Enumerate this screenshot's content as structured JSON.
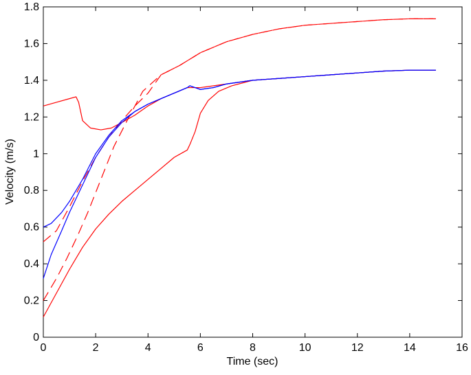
{
  "chart_data": {
    "type": "line",
    "title": "",
    "xlabel": "Time (sec)",
    "ylabel": "Velocity (m/s)",
    "xlim": [
      0,
      16
    ],
    "ylim": [
      0,
      1.8
    ],
    "xticks": [
      0,
      2,
      4,
      6,
      8,
      10,
      12,
      14,
      16
    ],
    "yticks": [
      0,
      0.2,
      0.4,
      0.6,
      0.8,
      1,
      1.2,
      1.4,
      1.6,
      1.8
    ],
    "grid": false,
    "legend": "none",
    "colors": {
      "red": "#ff0000",
      "blue": "#0000ff"
    },
    "series": [
      {
        "color": "red",
        "dashed": true,
        "points": [
          [
            0,
            0.2
          ],
          [
            0.5,
            0.32
          ],
          [
            0.9,
            0.43
          ],
          [
            1.3,
            0.55
          ],
          [
            1.7,
            0.68
          ],
          [
            2.2,
            0.86
          ],
          [
            2.7,
            1.04
          ],
          [
            3.2,
            1.18
          ],
          [
            3.8,
            1.34
          ],
          [
            4.5,
            1.43
          ],
          [
            5.2,
            1.48
          ],
          [
            6.0,
            1.55
          ],
          [
            7.0,
            1.61
          ],
          [
            8.0,
            1.65
          ],
          [
            9.0,
            1.68
          ],
          [
            10.0,
            1.7
          ],
          [
            11.0,
            1.71
          ],
          [
            12.0,
            1.72
          ],
          [
            13.0,
            1.73
          ],
          [
            14.0,
            1.735
          ],
          [
            15.0,
            1.735
          ]
        ]
      },
      {
        "color": "red",
        "dashed": true,
        "points": [
          [
            0,
            0.52
          ],
          [
            0.5,
            0.58
          ],
          [
            1.0,
            0.71
          ],
          [
            1.5,
            0.85
          ],
          [
            2.0,
            0.98
          ],
          [
            2.5,
            1.09
          ],
          [
            3.0,
            1.18
          ],
          [
            3.5,
            1.26
          ],
          [
            4.0,
            1.33
          ],
          [
            4.5,
            1.43
          ],
          [
            5.2,
            1.48
          ],
          [
            6.0,
            1.55
          ],
          [
            7.0,
            1.61
          ],
          [
            8.0,
            1.65
          ],
          [
            9.0,
            1.68
          ],
          [
            10.0,
            1.7
          ],
          [
            11.0,
            1.71
          ],
          [
            12.0,
            1.72
          ],
          [
            13.0,
            1.73
          ],
          [
            14.0,
            1.735
          ],
          [
            15.0,
            1.735
          ]
        ]
      },
      {
        "color": "red",
        "dashed": false,
        "points": [
          [
            0,
            1.26
          ],
          [
            0.5,
            1.28
          ],
          [
            1.0,
            1.3
          ],
          [
            1.25,
            1.31
          ],
          [
            1.35,
            1.28
          ],
          [
            1.5,
            1.18
          ],
          [
            1.8,
            1.14
          ],
          [
            2.2,
            1.13
          ],
          [
            2.6,
            1.14
          ],
          [
            3.0,
            1.17
          ],
          [
            3.5,
            1.21
          ],
          [
            4.0,
            1.26
          ],
          [
            4.5,
            1.3
          ],
          [
            5.0,
            1.33
          ],
          [
            5.5,
            1.36
          ],
          [
            6.0,
            1.36
          ],
          [
            7.0,
            1.38
          ],
          [
            8.0,
            1.4
          ],
          [
            9.0,
            1.41
          ],
          [
            10.0,
            1.42
          ],
          [
            11.0,
            1.43
          ],
          [
            12.0,
            1.44
          ],
          [
            13.0,
            1.45
          ],
          [
            14.0,
            1.455
          ],
          [
            15.0,
            1.455
          ]
        ]
      },
      {
        "color": "red",
        "dashed": false,
        "points": [
          [
            0,
            0.11
          ],
          [
            0.5,
            0.24
          ],
          [
            1.0,
            0.37
          ],
          [
            1.5,
            0.49
          ],
          [
            2.0,
            0.59
          ],
          [
            2.5,
            0.67
          ],
          [
            3.0,
            0.74
          ],
          [
            3.5,
            0.8
          ],
          [
            4.0,
            0.86
          ],
          [
            4.5,
            0.92
          ],
          [
            5.0,
            0.98
          ],
          [
            5.5,
            1.02
          ],
          [
            5.6,
            1.05
          ],
          [
            5.8,
            1.12
          ],
          [
            6.0,
            1.22
          ],
          [
            6.3,
            1.29
          ],
          [
            6.7,
            1.34
          ],
          [
            7.2,
            1.37
          ],
          [
            8.0,
            1.4
          ],
          [
            9.0,
            1.41
          ],
          [
            10.0,
            1.42
          ],
          [
            11.0,
            1.43
          ],
          [
            12.0,
            1.44
          ],
          [
            13.0,
            1.45
          ],
          [
            14.0,
            1.455
          ],
          [
            15.0,
            1.455
          ]
        ]
      },
      {
        "color": "blue",
        "dashed": false,
        "points": [
          [
            0,
            0.6
          ],
          [
            0.3,
            0.62
          ],
          [
            0.7,
            0.68
          ],
          [
            1.0,
            0.74
          ],
          [
            1.5,
            0.86
          ],
          [
            2.0,
            1.0
          ],
          [
            2.5,
            1.1
          ],
          [
            3.0,
            1.18
          ],
          [
            3.5,
            1.23
          ],
          [
            4.0,
            1.27
          ],
          [
            4.5,
            1.3
          ],
          [
            5.0,
            1.33
          ],
          [
            5.5,
            1.36
          ],
          [
            5.6,
            1.37
          ],
          [
            5.8,
            1.36
          ],
          [
            6.0,
            1.35
          ],
          [
            6.5,
            1.36
          ],
          [
            7.0,
            1.38
          ],
          [
            8.0,
            1.4
          ],
          [
            9.0,
            1.41
          ],
          [
            10.0,
            1.42
          ],
          [
            11.0,
            1.43
          ],
          [
            12.0,
            1.44
          ],
          [
            13.0,
            1.45
          ],
          [
            14.0,
            1.455
          ],
          [
            15.0,
            1.455
          ]
        ]
      },
      {
        "color": "blue",
        "dashed": false,
        "points": [
          [
            0,
            0.32
          ],
          [
            0.3,
            0.45
          ],
          [
            0.7,
            0.58
          ],
          [
            1.0,
            0.68
          ],
          [
            1.5,
            0.83
          ],
          [
            2.0,
            0.98
          ],
          [
            2.5,
            1.09
          ],
          [
            3.0,
            1.17
          ],
          [
            3.5,
            1.23
          ],
          [
            4.0,
            1.27
          ],
          [
            4.5,
            1.3
          ],
          [
            5.0,
            1.33
          ],
          [
            5.5,
            1.36
          ],
          [
            5.6,
            1.37
          ],
          [
            5.8,
            1.36
          ],
          [
            6.0,
            1.35
          ],
          [
            6.5,
            1.36
          ],
          [
            7.0,
            1.38
          ],
          [
            8.0,
            1.4
          ],
          [
            9.0,
            1.41
          ],
          [
            10.0,
            1.42
          ],
          [
            11.0,
            1.43
          ],
          [
            12.0,
            1.44
          ],
          [
            13.0,
            1.45
          ],
          [
            14.0,
            1.455
          ],
          [
            15.0,
            1.455
          ]
        ]
      }
    ]
  }
}
